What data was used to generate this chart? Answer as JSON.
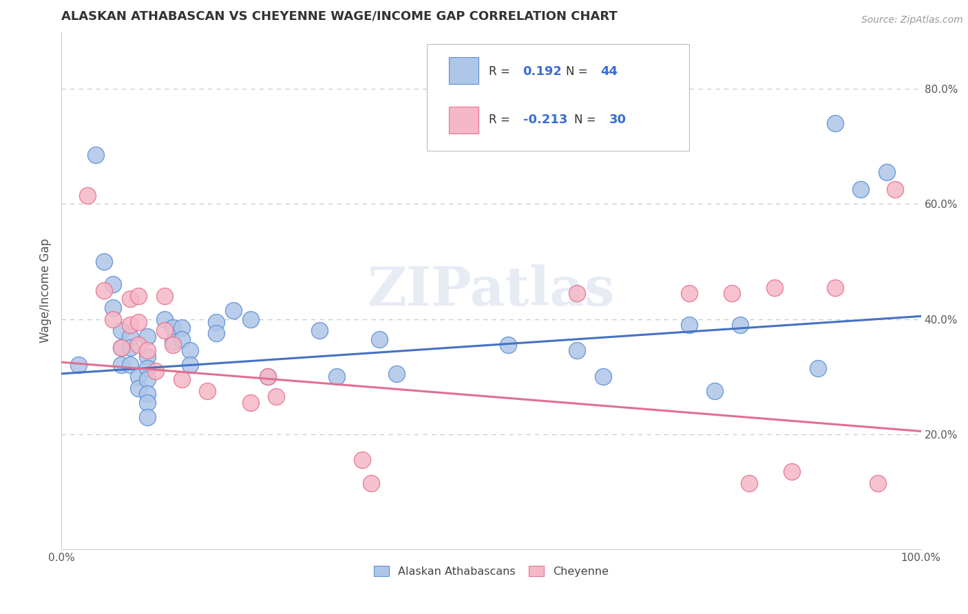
{
  "title": "ALASKAN ATHABASCAN VS CHEYENNE WAGE/INCOME GAP CORRELATION CHART",
  "source": "Source: ZipAtlas.com",
  "ylabel": "Wage/Income Gap",
  "xlim": [
    0.0,
    1.0
  ],
  "ylim": [
    0.0,
    0.9
  ],
  "xticks": [
    0.0,
    0.1,
    0.2,
    0.3,
    0.4,
    0.5,
    0.6,
    0.7,
    0.8,
    0.9,
    1.0
  ],
  "xticklabels": [
    "0.0%",
    "",
    "",
    "",
    "",
    "",
    "",
    "",
    "",
    "",
    "100.0%"
  ],
  "ytick_positions": [
    0.2,
    0.4,
    0.6,
    0.8
  ],
  "yticklabels": [
    "20.0%",
    "40.0%",
    "60.0%",
    "80.0%"
  ],
  "grid_color": "#c8c8c8",
  "background_color": "#ffffff",
  "watermark_text": "ZIPatlas",
  "blue_color": "#aec6e8",
  "pink_color": "#f5b8c8",
  "blue_edge_color": "#5b8ed6",
  "pink_edge_color": "#e8708a",
  "blue_line_color": "#4472c4",
  "pink_line_color": "#e07090",
  "blue_scatter": [
    [
      0.02,
      0.32
    ],
    [
      0.04,
      0.685
    ],
    [
      0.05,
      0.5
    ],
    [
      0.06,
      0.46
    ],
    [
      0.06,
      0.42
    ],
    [
      0.07,
      0.38
    ],
    [
      0.07,
      0.35
    ],
    [
      0.07,
      0.32
    ],
    [
      0.08,
      0.37
    ],
    [
      0.08,
      0.35
    ],
    [
      0.08,
      0.32
    ],
    [
      0.09,
      0.3
    ],
    [
      0.09,
      0.28
    ],
    [
      0.1,
      0.37
    ],
    [
      0.1,
      0.335
    ],
    [
      0.1,
      0.315
    ],
    [
      0.1,
      0.295
    ],
    [
      0.1,
      0.27
    ],
    [
      0.1,
      0.255
    ],
    [
      0.1,
      0.23
    ],
    [
      0.12,
      0.4
    ],
    [
      0.13,
      0.385
    ],
    [
      0.13,
      0.36
    ],
    [
      0.14,
      0.385
    ],
    [
      0.14,
      0.365
    ],
    [
      0.15,
      0.345
    ],
    [
      0.15,
      0.32
    ],
    [
      0.18,
      0.395
    ],
    [
      0.18,
      0.375
    ],
    [
      0.2,
      0.415
    ],
    [
      0.22,
      0.4
    ],
    [
      0.24,
      0.3
    ],
    [
      0.3,
      0.38
    ],
    [
      0.32,
      0.3
    ],
    [
      0.37,
      0.365
    ],
    [
      0.39,
      0.305
    ],
    [
      0.52,
      0.355
    ],
    [
      0.6,
      0.345
    ],
    [
      0.63,
      0.3
    ],
    [
      0.73,
      0.39
    ],
    [
      0.76,
      0.275
    ],
    [
      0.79,
      0.39
    ],
    [
      0.88,
      0.315
    ],
    [
      0.9,
      0.74
    ],
    [
      0.93,
      0.625
    ],
    [
      0.96,
      0.655
    ]
  ],
  "pink_scatter": [
    [
      0.03,
      0.615
    ],
    [
      0.05,
      0.45
    ],
    [
      0.06,
      0.4
    ],
    [
      0.07,
      0.35
    ],
    [
      0.08,
      0.435
    ],
    [
      0.08,
      0.39
    ],
    [
      0.09,
      0.44
    ],
    [
      0.09,
      0.395
    ],
    [
      0.09,
      0.355
    ],
    [
      0.1,
      0.345
    ],
    [
      0.11,
      0.31
    ],
    [
      0.12,
      0.44
    ],
    [
      0.12,
      0.38
    ],
    [
      0.13,
      0.355
    ],
    [
      0.14,
      0.295
    ],
    [
      0.17,
      0.275
    ],
    [
      0.22,
      0.255
    ],
    [
      0.24,
      0.3
    ],
    [
      0.25,
      0.265
    ],
    [
      0.35,
      0.155
    ],
    [
      0.36,
      0.115
    ],
    [
      0.6,
      0.445
    ],
    [
      0.73,
      0.445
    ],
    [
      0.78,
      0.445
    ],
    [
      0.8,
      0.115
    ],
    [
      0.83,
      0.455
    ],
    [
      0.85,
      0.135
    ],
    [
      0.9,
      0.455
    ],
    [
      0.95,
      0.115
    ],
    [
      0.97,
      0.625
    ]
  ],
  "blue_line_x": [
    0.0,
    1.0
  ],
  "blue_line_y": [
    0.305,
    0.405
  ],
  "pink_line_x": [
    0.0,
    1.0
  ],
  "pink_line_y": [
    0.325,
    0.205
  ]
}
